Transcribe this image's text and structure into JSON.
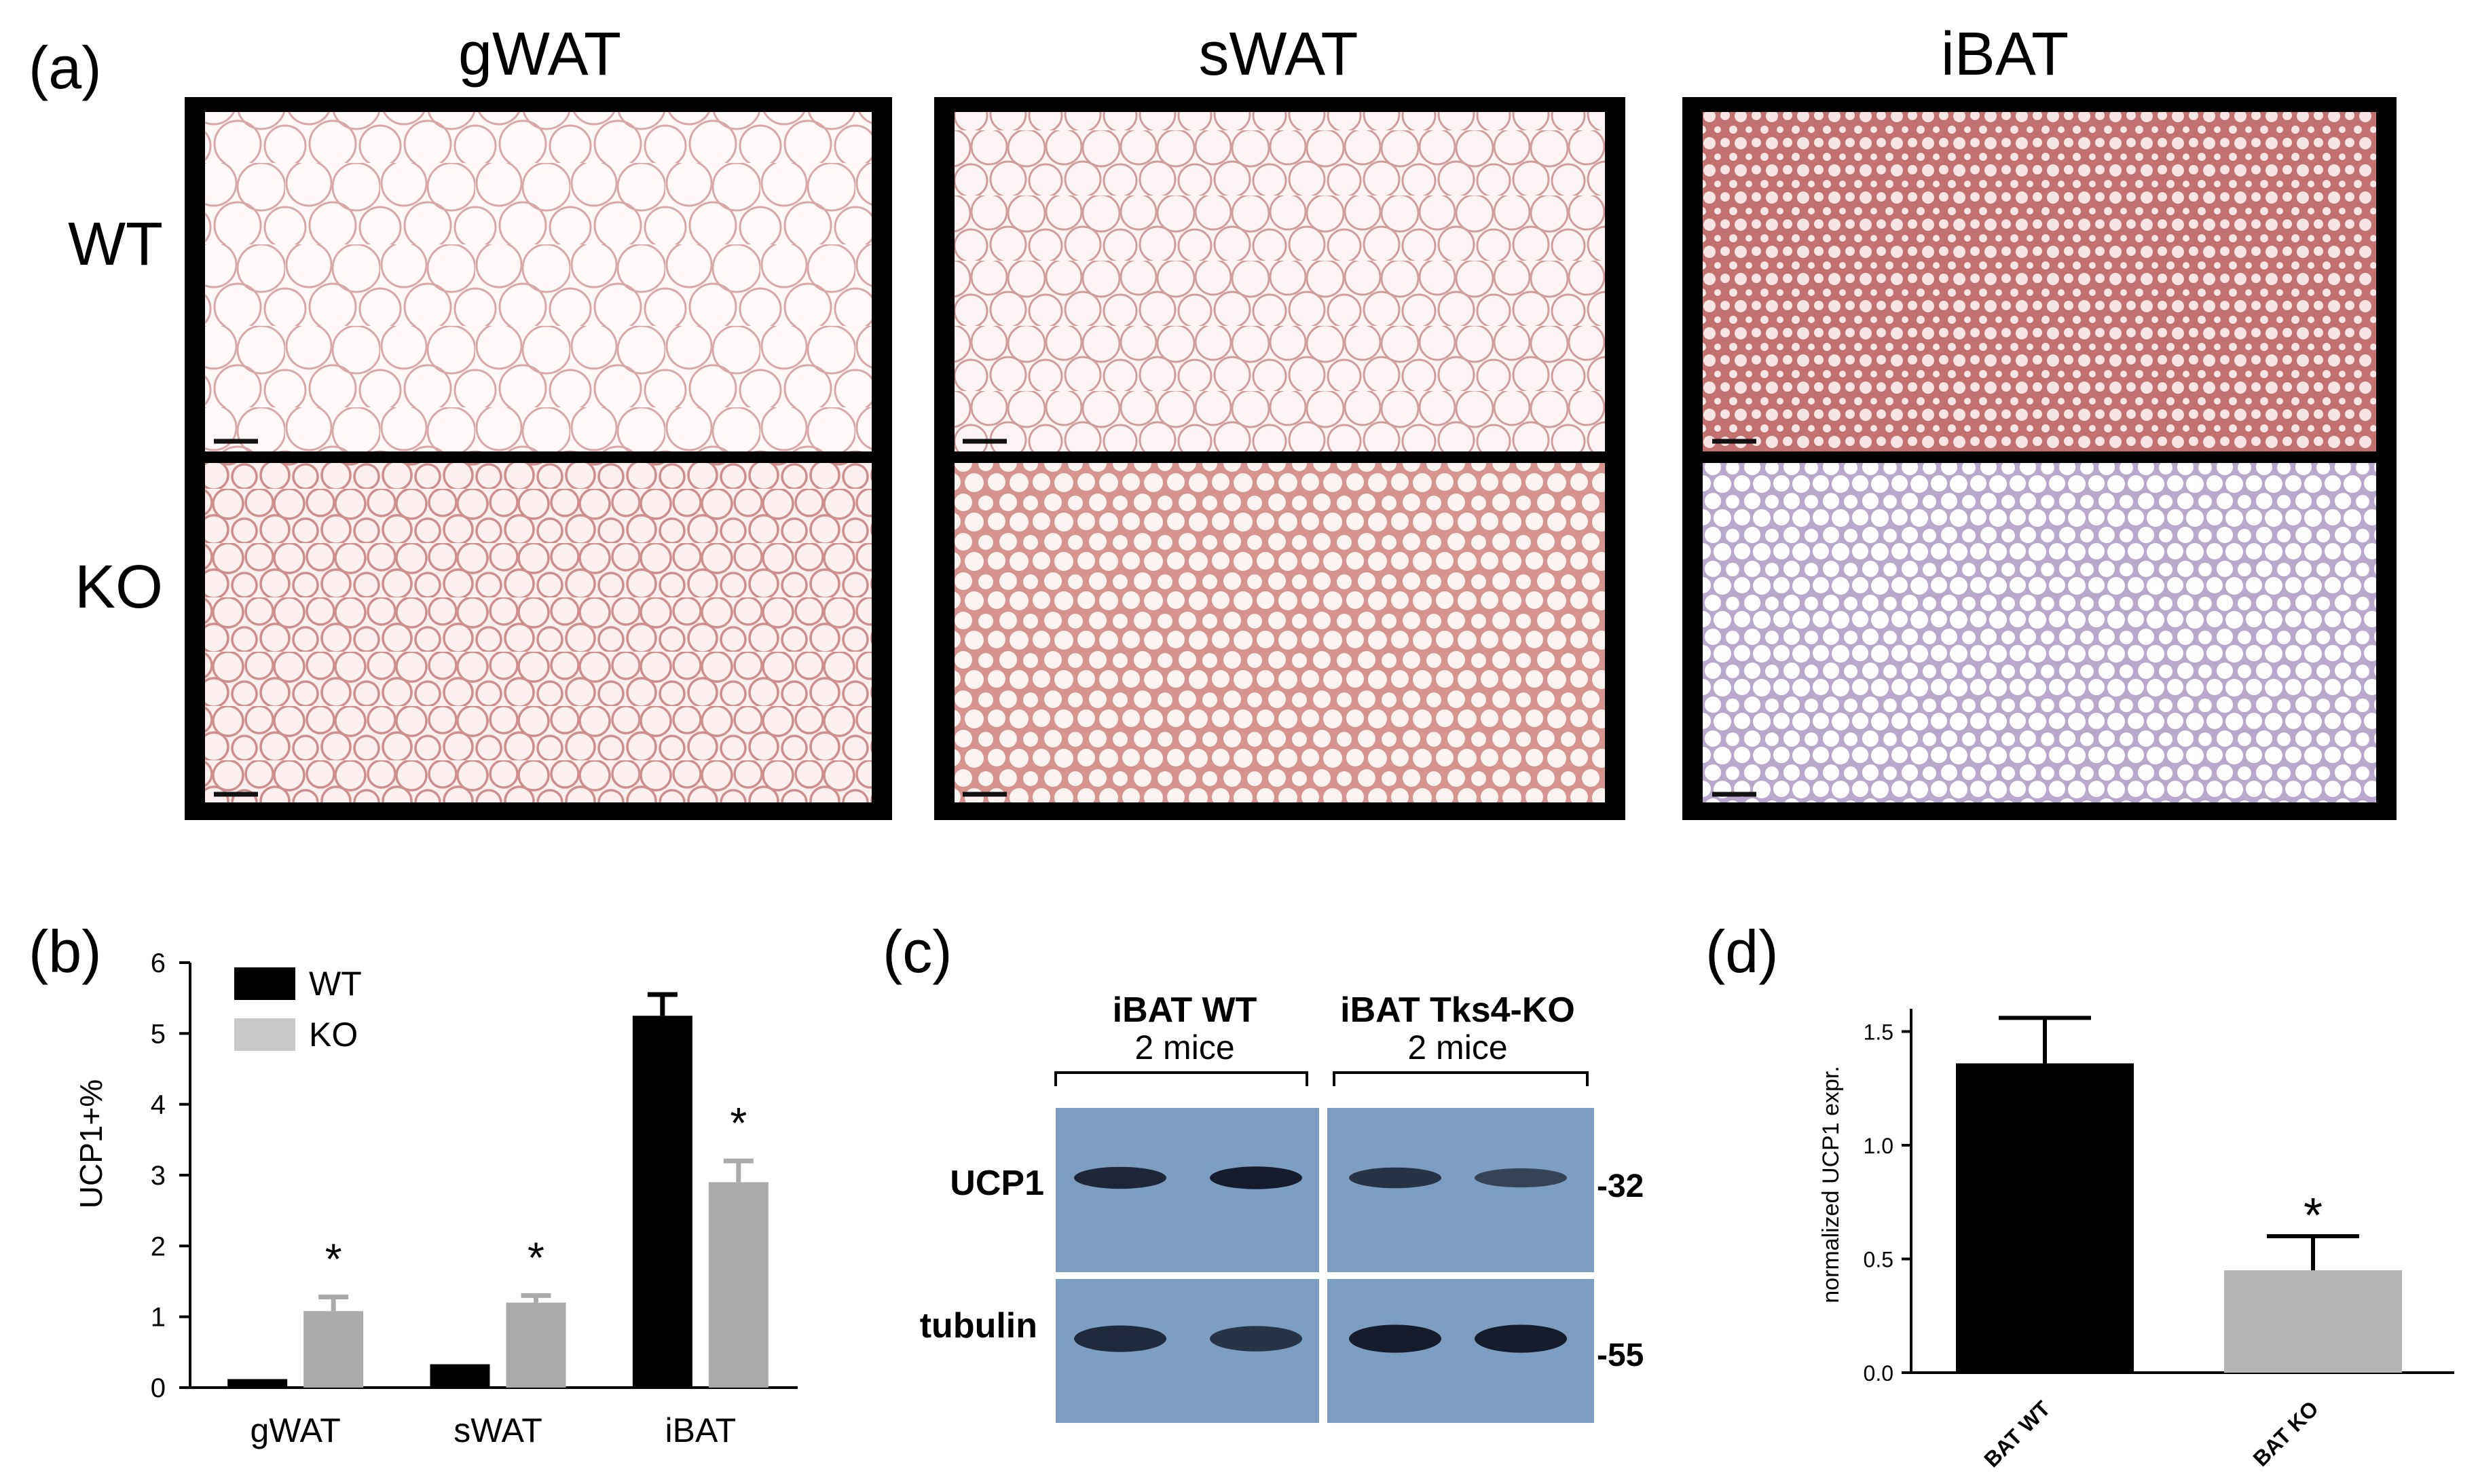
{
  "figure": {
    "panel_labels": {
      "a": "(a)",
      "b": "(b)",
      "c": "(c)",
      "d": "(d)"
    },
    "panel_a": {
      "column_headers": [
        "gWAT",
        "sWAT",
        "iBAT"
      ],
      "row_labels": [
        "WT",
        "KO"
      ],
      "stain_colors": {
        "gWAT_WT": "#f0d2d2",
        "gWAT_KO": "#e8baba",
        "sWAT_WT": "#ecc8c8",
        "sWAT_KO": "#d69490",
        "iBAT_WT": "#c27070",
        "iBAT_KO": "#b8a8cc"
      }
    },
    "panel_c": {
      "group_headers": [
        {
          "title": "iBAT WT",
          "subtitle": "2 mice"
        },
        {
          "title": "iBAT Tks4-KO",
          "subtitle": "2 mice"
        }
      ],
      "row_labels": [
        "UCP1",
        "tubulin"
      ],
      "markers": [
        "-32",
        "-55"
      ],
      "band_intensity": {
        "UCP1": [
          0.85,
          0.95,
          0.7,
          0.5
        ],
        "tubulin": [
          0.8,
          0.7,
          0.95,
          0.95
        ]
      },
      "membrane_color": "#7c9ec2",
      "band_color": "#141828"
    }
  },
  "chart_data": [
    {
      "type": "bar",
      "panel": "b",
      "categories": [
        "gWAT",
        "sWAT",
        "iBAT"
      ],
      "series": [
        {
          "name": "WT",
          "values": [
            0.12,
            0.33,
            5.25
          ],
          "errors": [
            0,
            0,
            0.3
          ],
          "color": "#000000"
        },
        {
          "name": "KO",
          "values": [
            1.08,
            1.2,
            2.9
          ],
          "errors": [
            0.2,
            0.1,
            0.3
          ],
          "color": "#aaaaaa"
        }
      ],
      "significance": [
        "*",
        "*",
        "*"
      ],
      "ylabel": "UCP1+%",
      "ylim": [
        0,
        6
      ],
      "yticks": [
        "0",
        "1",
        "2",
        "3",
        "4",
        "5",
        "6"
      ],
      "legend_position": "top-left"
    },
    {
      "type": "bar",
      "panel": "d",
      "categories": [
        "BAT WT",
        "BAT KO"
      ],
      "values": [
        1.36,
        0.45
      ],
      "errors": [
        0.2,
        0.15
      ],
      "colors": [
        "#000000",
        "#b4b4b4"
      ],
      "significance": [
        "",
        "*"
      ],
      "ylabel": "normalized UCP1 expr.",
      "ylim": [
        0,
        1.6
      ],
      "yticks": [
        "0.0",
        "0.5",
        "1.0",
        "1.5"
      ]
    }
  ]
}
